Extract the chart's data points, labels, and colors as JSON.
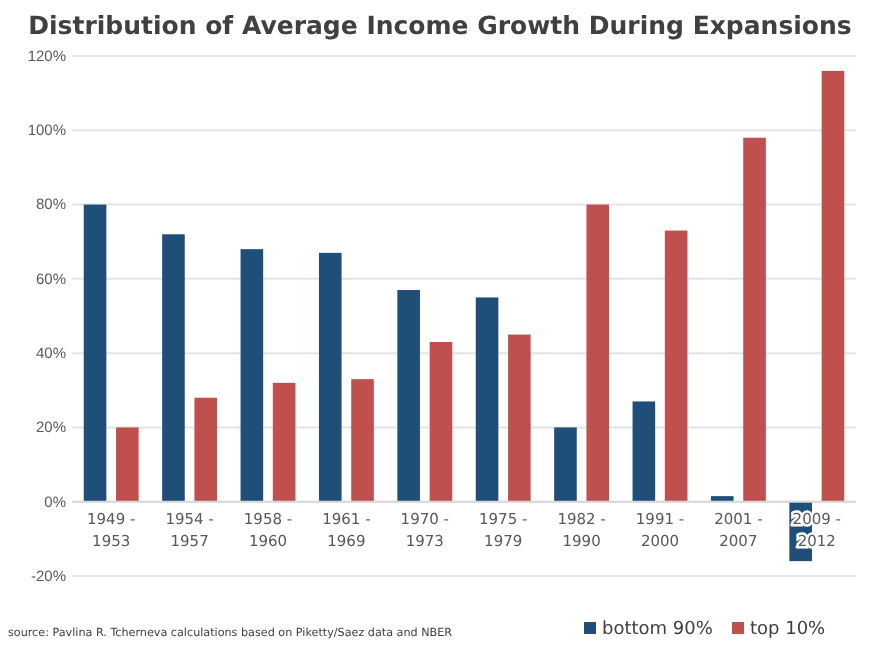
{
  "chart_data": {
    "type": "bar",
    "title": "Distribution of Average Income Growth During Expansions",
    "categories": [
      "1949 - 1953",
      "1954 - 1957",
      "1958 - 1960",
      "1961 - 1969",
      "1970 - 1973",
      "1975 - 1979",
      "1982 - 1990",
      "1991 - 2000",
      "2001 - 2007",
      "2009 - 2012"
    ],
    "series": [
      {
        "name": "bottom 90%",
        "color": "#1f4e79",
        "values": [
          80,
          72,
          68,
          67,
          57,
          55,
          20,
          27,
          1.5,
          -16
        ]
      },
      {
        "name": "top 10%",
        "color": "#c0504d",
        "values": [
          20,
          28,
          32,
          33,
          43,
          45,
          80,
          73,
          98,
          116
        ]
      }
    ],
    "ylim": [
      -20,
      120
    ],
    "yticks": [
      {
        "value": -20,
        "label": "-20%"
      },
      {
        "value": 0,
        "label": "0%"
      },
      {
        "value": 20,
        "label": "20%"
      },
      {
        "value": 40,
        "label": "40%"
      },
      {
        "value": 60,
        "label": "60%"
      },
      {
        "value": 80,
        "label": "80%"
      },
      {
        "value": 100,
        "label": "100%"
      },
      {
        "value": 120,
        "label": "120%"
      }
    ],
    "grid": "y",
    "legend": "bottom right",
    "annotations": [
      "source: Pavlina R. Tcherneva calculations based on Piketty/Saez data and NBER"
    ]
  }
}
